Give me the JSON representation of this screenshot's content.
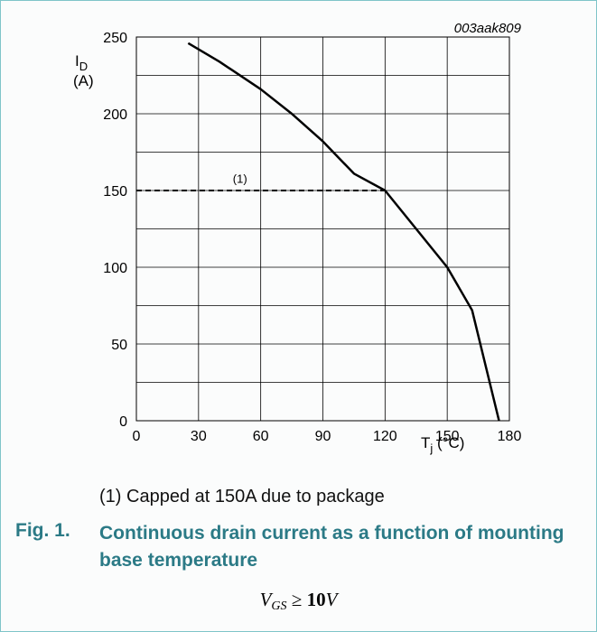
{
  "chart_data": {
    "type": "line",
    "code": "003aak809",
    "ylabel_symbol": "I",
    "ylabel_sub": "D",
    "ylabel_unit": "(A)",
    "xlabel_symbol": "T",
    "xlabel_sub": "j",
    "xlabel_unit": "(°C)",
    "xlim": [
      0,
      180
    ],
    "ylim": [
      0,
      250
    ],
    "x_ticks": [
      0,
      30,
      60,
      90,
      120,
      150,
      180
    ],
    "y_ticks": [
      0,
      50,
      100,
      150,
      200,
      250
    ],
    "grid": true,
    "series": [
      {
        "style": "solid",
        "x": [
          25,
          40,
          60,
          75,
          90,
          105,
          120,
          135,
          150,
          162,
          175
        ],
        "y": [
          246,
          234,
          216,
          200,
          182,
          161,
          150,
          125,
          100,
          72,
          0
        ]
      },
      {
        "style": "dashed",
        "x": [
          0,
          120
        ],
        "y": [
          150,
          150
        ]
      }
    ],
    "annotation": "(1)",
    "annotation_at": [
      50,
      155
    ]
  },
  "footnote": "(1) Capped at 150A due to package",
  "figure": {
    "number": "Fig. 1.",
    "title": "Continuous drain current as a function of mounting base temperature"
  },
  "condition": {
    "symbol": "V",
    "sub": "GS",
    "op": "≥",
    "value": "10",
    "unit": "V"
  }
}
